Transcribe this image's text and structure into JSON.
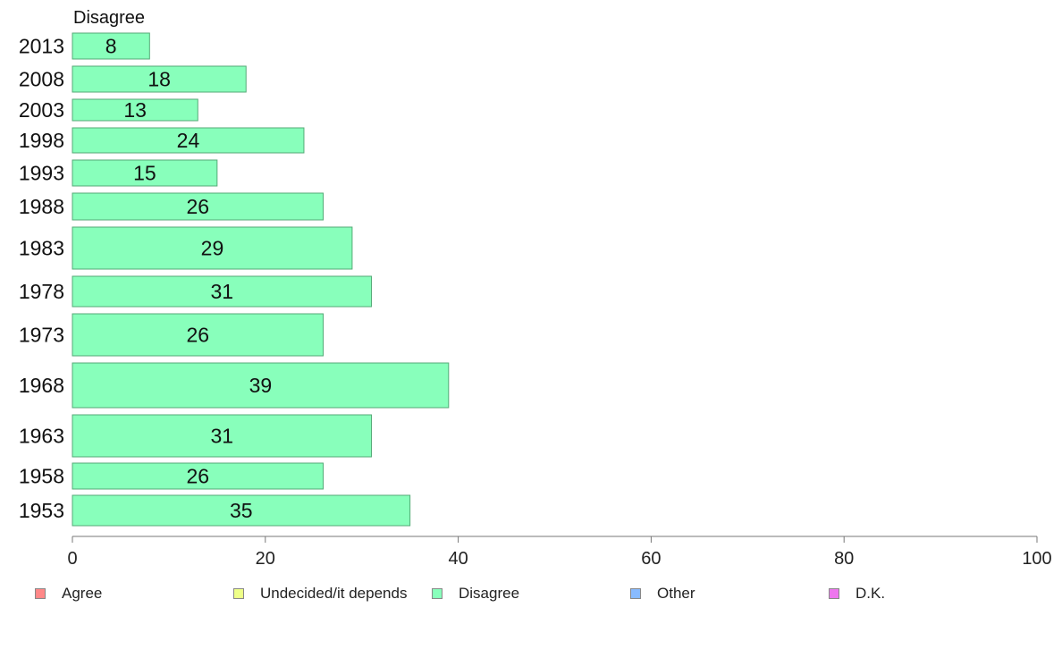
{
  "chart_data": {
    "type": "bar",
    "orientation": "horizontal",
    "title": "Disagree",
    "categories": [
      "2013",
      "2008",
      "2003",
      "1998",
      "1993",
      "1988",
      "1983",
      "1978",
      "1973",
      "1968",
      "1963",
      "1958",
      "1953"
    ],
    "values": [
      8,
      18,
      13,
      24,
      15,
      26,
      29,
      31,
      26,
      39,
      31,
      26,
      35
    ],
    "xlim": [
      0,
      100
    ],
    "xticks": [
      0,
      20,
      40,
      60,
      80,
      100
    ],
    "grid": false,
    "bar_color": "#88ffbb",
    "legend": {
      "placement": "bottom",
      "entries": [
        {
          "label": "Agree",
          "color": "#ff8888"
        },
        {
          "label": "Undecided/it depends",
          "color": "#eeff88"
        },
        {
          "label": "Disagree",
          "color": "#88ffbb"
        },
        {
          "label": "Other",
          "color": "#88bbff"
        },
        {
          "label": "D.K.",
          "color": "#ee77ee"
        }
      ]
    }
  }
}
